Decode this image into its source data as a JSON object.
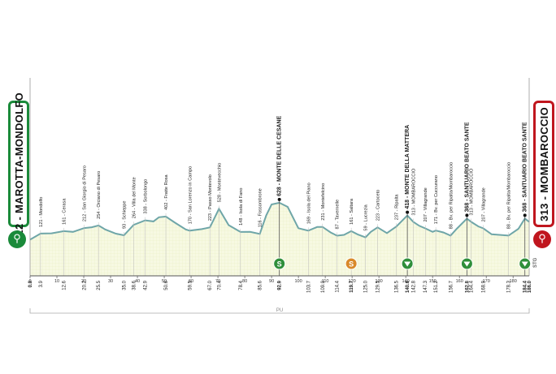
{
  "start": {
    "label": "22 - MAROTTA-MONDOLFO"
  },
  "finish": {
    "label": "313 - MOMBAROCCIO"
  },
  "sector_label": "PU",
  "stg_label": "STG",
  "icons": {
    "start": "bicycle-icon",
    "finish": "bicycle-icon",
    "sprint": "sprint-s-icon",
    "climb": "kom-triangle-icon"
  },
  "colors": {
    "profile_fill": "#f4f7d8",
    "profile_line": "#6fa6a8",
    "green": "#2f8f3a",
    "orange": "#d9892a",
    "start_badge": "#1a8a3a",
    "end_badge": "#c0161e"
  },
  "chart_data": {
    "type": "area",
    "title": "",
    "xlabel": "",
    "ylabel": "",
    "xlim": [
      0,
      186
    ],
    "x_ticks": [
      "0",
      "10",
      "20",
      "30",
      "40",
      "50",
      "60",
      "70",
      "80",
      "90",
      "100",
      "110",
      "120",
      "130",
      "140",
      "150",
      "160",
      "170",
      "180"
    ],
    "profile": [
      [
        0,
        22
      ],
      [
        3.9,
        121
      ],
      [
        8,
        125
      ],
      [
        12.6,
        161
      ],
      [
        16,
        150
      ],
      [
        20.2,
        212
      ],
      [
        23,
        225
      ],
      [
        25.5,
        254
      ],
      [
        28,
        190
      ],
      [
        32,
        120
      ],
      [
        35,
        93
      ],
      [
        38.6,
        264
      ],
      [
        42.9,
        338
      ],
      [
        46,
        322
      ],
      [
        48,
        390
      ],
      [
        50.6,
        402
      ],
      [
        54,
        300
      ],
      [
        58,
        190
      ],
      [
        59.5,
        170
      ],
      [
        64,
        195
      ],
      [
        67,
        223
      ],
      [
        70.4,
        528
      ],
      [
        74,
        260
      ],
      [
        78.4,
        148
      ],
      [
        82,
        150
      ],
      [
        85.6,
        116
      ],
      [
        88,
        420
      ],
      [
        90,
        600
      ],
      [
        92.9,
        628
      ],
      [
        96,
        560
      ],
      [
        100,
        210
      ],
      [
        103.7,
        169
      ],
      [
        107,
        230
      ],
      [
        109,
        231
      ],
      [
        112,
        140
      ],
      [
        114.4,
        87
      ],
      [
        117,
        100
      ],
      [
        119.7,
        161
      ],
      [
        122,
        110
      ],
      [
        125,
        59
      ],
      [
        127,
        150
      ],
      [
        129.5,
        223
      ],
      [
        133,
        130
      ],
      [
        136.5,
        237
      ],
      [
        140.6,
        418
      ],
      [
        142.8,
        313
      ],
      [
        145,
        250
      ],
      [
        147.3,
        207
      ],
      [
        150,
        150
      ],
      [
        151.2,
        171
      ],
      [
        154,
        140
      ],
      [
        156.7,
        88
      ],
      [
        159,
        200
      ],
      [
        162.8,
        368
      ],
      [
        164.4,
        313
      ],
      [
        167,
        240
      ],
      [
        168.9,
        207
      ],
      [
        172,
        110
      ],
      [
        178.3,
        88
      ],
      [
        182,
        200
      ],
      [
        184.4,
        368
      ],
      [
        186,
        313
      ]
    ],
    "distance_labels": [
      "0.0",
      "3.9",
      "12.6",
      "20.2",
      "25.5",
      "35.0",
      "38.6",
      "42.9",
      "50.6",
      "59.5",
      "67.0",
      "70.4",
      "78.4",
      "85.6",
      "92.9",
      "103.7",
      "109.0",
      "114.4",
      "119.7",
      "125.0",
      "129.5",
      "136.5",
      "140.6",
      "142.8",
      "147.3",
      "151.2",
      "156.7",
      "162.8",
      "164.4",
      "168.9",
      "178.3",
      "184.4",
      "186.0"
    ],
    "points": [
      {
        "km": 3.9,
        "label": "121 - Mondolfo",
        "bold": false
      },
      {
        "km": 12.6,
        "label": "161 - Cerasa",
        "bold": false
      },
      {
        "km": 20.2,
        "label": "212 - San Giorgio di Pesaro",
        "bold": false
      },
      {
        "km": 25.5,
        "label": "254 - Orciano di Pesaro",
        "bold": false
      },
      {
        "km": 35.0,
        "label": "93 - Schieppe",
        "bold": false
      },
      {
        "km": 38.6,
        "label": "264 - Villa del Monte",
        "bold": false
      },
      {
        "km": 42.9,
        "label": "338 - Sorbolongo",
        "bold": false
      },
      {
        "km": 50.6,
        "label": "402 - Fratte Rosa",
        "bold": false
      },
      {
        "km": 59.5,
        "label": "170 - San Lorenzo in Campo",
        "bold": false
      },
      {
        "km": 67.0,
        "label": "223 - Passo Montevolo",
        "bold": false
      },
      {
        "km": 70.4,
        "label": "528 - Montevecchio",
        "bold": false
      },
      {
        "km": 78.4,
        "label": "148 - Isola di Fano",
        "bold": false
      },
      {
        "km": 85.6,
        "label": "116 - Fossombrone",
        "bold": false
      },
      {
        "km": 92.9,
        "label": "628 - MONTE DELLE CESANE",
        "bold": true
      },
      {
        "km": 103.7,
        "label": "169 - Isola del Piano",
        "bold": false
      },
      {
        "km": 109.0,
        "label": "231 - Montefelcino",
        "bold": false
      },
      {
        "km": 114.4,
        "label": "87 - Tavernelle",
        "bold": false
      },
      {
        "km": 119.7,
        "label": "161 - Saltara",
        "bold": false
      },
      {
        "km": 125.0,
        "label": "59 - Lucrezia",
        "bold": false
      },
      {
        "km": 129.5,
        "label": "223 - Cartoceto",
        "bold": false
      },
      {
        "km": 136.5,
        "label": "237 - Ripalta",
        "bold": false
      },
      {
        "km": 140.6,
        "label": "418 - MONTE DELLA MATTERA",
        "bold": true
      },
      {
        "km": 142.8,
        "label": "313 - MOMBAROCCIO",
        "bold": false
      },
      {
        "km": 147.3,
        "label": "207 - Villagrande",
        "bold": false
      },
      {
        "km": 151.2,
        "label": "171 - Bv. per Cuccurano",
        "bold": false
      },
      {
        "km": 156.7,
        "label": "88 - Bv. per Ripalta/Mombaroccio",
        "bold": false
      },
      {
        "km": 162.8,
        "label": "368 - SANTUARIO BEATO SANTE",
        "bold": true
      },
      {
        "km": 164.4,
        "label": "313 - MOMBAROCCIO",
        "bold": false
      },
      {
        "km": 168.9,
        "label": "207 - Villagrande",
        "bold": false
      },
      {
        "km": 178.3,
        "label": "88 - Bv. per Ripalta/Mombaroccio",
        "bold": false
      },
      {
        "km": 184.4,
        "label": "368 - SANTUARIO BEATO SANTE",
        "bold": true
      }
    ],
    "markers": [
      {
        "km": 92.9,
        "type": "sprint",
        "color": "green",
        "symbol": "S"
      },
      {
        "km": 119.7,
        "type": "sprint",
        "color": "orange",
        "symbol": "S"
      },
      {
        "km": 140.6,
        "type": "climb",
        "color": "green",
        "symbol": ""
      },
      {
        "km": 162.8,
        "type": "climb",
        "color": "green",
        "symbol": ""
      },
      {
        "km": 184.4,
        "type": "climb",
        "color": "green",
        "symbol": ""
      }
    ]
  }
}
